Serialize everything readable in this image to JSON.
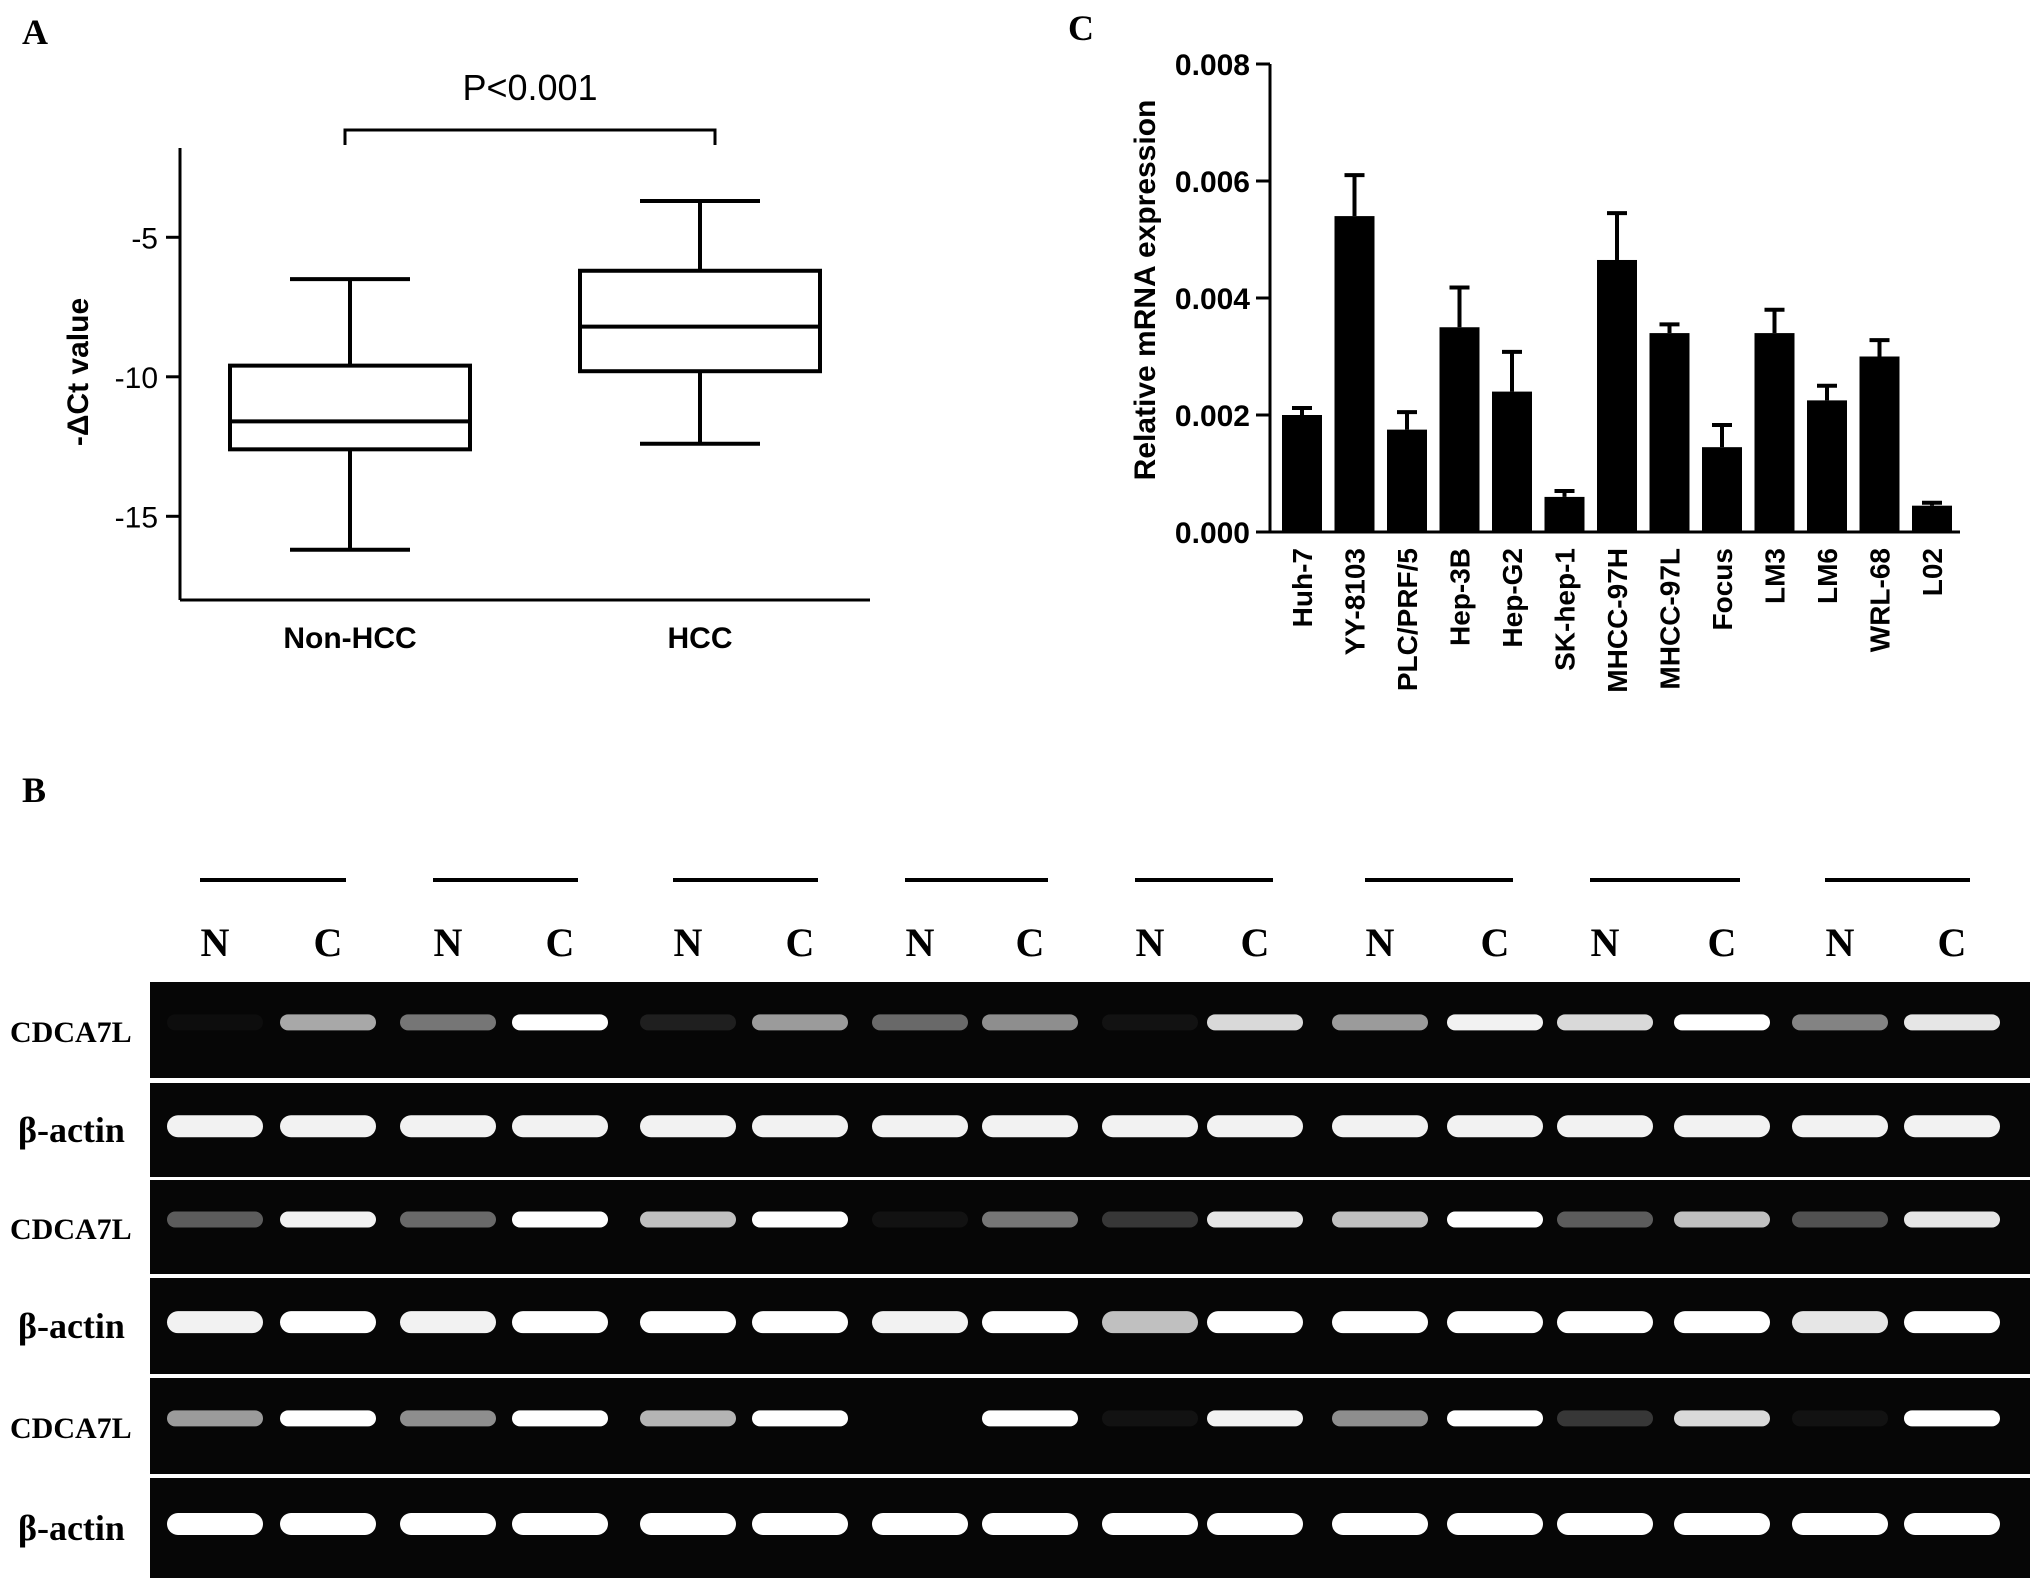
{
  "panels": {
    "a_label": "A",
    "b_label": "B",
    "c_label": "C"
  },
  "chart_data": [
    {
      "type": "box",
      "panel": "A",
      "title": "",
      "xlabel": "",
      "ylabel": "-ΔCt value",
      "ylim": [
        -18,
        -1.8
      ],
      "yticks": [
        -5,
        -10,
        -15
      ],
      "ytick_labels": [
        "-5",
        "-10",
        "-15"
      ],
      "categories": [
        "Non-HCC",
        "HCC"
      ],
      "boxes": [
        {
          "category": "Non-HCC",
          "min": -16.2,
          "q1": -12.6,
          "median": -11.6,
          "q3": -9.6,
          "max": -6.5
        },
        {
          "category": "HCC",
          "min": -12.4,
          "q1": -9.8,
          "median": -8.2,
          "q3": -6.2,
          "max": -3.7
        }
      ],
      "annotation": {
        "text": "P<0.001",
        "from": "Non-HCC",
        "to": "HCC"
      },
      "grid": false
    },
    {
      "type": "bar",
      "panel": "C",
      "title": "",
      "xlabel": "",
      "ylabel": "Relative mRNA expression",
      "ylim": [
        0,
        0.008
      ],
      "yticks": [
        0,
        0.002,
        0.004,
        0.006,
        0.008
      ],
      "ytick_labels": [
        "0.000",
        "0.002",
        "0.004",
        "0.006",
        "0.008"
      ],
      "categories": [
        "Huh-7",
        "YY-8103",
        "PLC/PRF/5",
        "Hep-3B",
        "Hep-G2",
        "SK-hep-1",
        "MHCC-97H",
        "MHCC-97L",
        "Focus",
        "LM3",
        "LM6",
        "WRL-68",
        "L02"
      ],
      "values": [
        0.002,
        0.0054,
        0.00175,
        0.0035,
        0.0024,
        0.0006,
        0.00465,
        0.0034,
        0.00145,
        0.0034,
        0.00225,
        0.003,
        0.00045
      ],
      "errors": [
        0.00012,
        0.0007,
        0.0003,
        0.00068,
        0.00068,
        0.0001,
        0.0008,
        0.00015,
        0.00038,
        0.0004,
        0.00025,
        0.00028,
        5e-05
      ],
      "grid": false
    },
    {
      "type": "heatmap",
      "panel": "B",
      "title": "",
      "lane_labels": [
        "N",
        "C",
        "N",
        "C",
        "N",
        "C",
        "N",
        "C",
        "N",
        "C",
        "N",
        "C",
        "N",
        "C",
        "N",
        "C"
      ],
      "rows": [
        {
          "label": "CDCA7L",
          "intensities": [
            0.03,
            0.65,
            0.45,
            1.0,
            0.1,
            0.6,
            0.4,
            0.55,
            0.05,
            0.85,
            0.6,
            0.95,
            0.85,
            1.0,
            0.5,
            0.9
          ]
        },
        {
          "label": "β-actin",
          "intensities": [
            0.95,
            0.95,
            0.95,
            0.95,
            0.95,
            0.95,
            0.95,
            0.95,
            0.95,
            0.95,
            0.95,
            0.95,
            0.95,
            0.95,
            0.95,
            0.95
          ]
        },
        {
          "label": "CDCA7L",
          "intensities": [
            0.35,
            0.95,
            0.4,
            1.0,
            0.75,
            1.0,
            0.05,
            0.45,
            0.2,
            0.9,
            0.75,
            1.0,
            0.35,
            0.75,
            0.3,
            0.9
          ]
        },
        {
          "label": "β-actin",
          "intensities": [
            0.95,
            1.0,
            0.95,
            1.0,
            1.0,
            1.0,
            0.95,
            1.0,
            0.75,
            1.0,
            1.0,
            1.0,
            1.0,
            1.0,
            0.9,
            1.0
          ]
        },
        {
          "label": "CDCA7L",
          "intensities": [
            0.6,
            1.0,
            0.55,
            1.0,
            0.7,
            1.0,
            0.0,
            1.0,
            0.05,
            0.95,
            0.55,
            1.0,
            0.2,
            0.85,
            0.05,
            1.0
          ]
        },
        {
          "label": "β-actin",
          "intensities": [
            1.0,
            1.0,
            1.0,
            1.0,
            1.0,
            1.0,
            1.0,
            1.0,
            1.0,
            1.0,
            1.0,
            1.0,
            1.0,
            1.0,
            1.0,
            1.0
          ]
        }
      ]
    }
  ]
}
